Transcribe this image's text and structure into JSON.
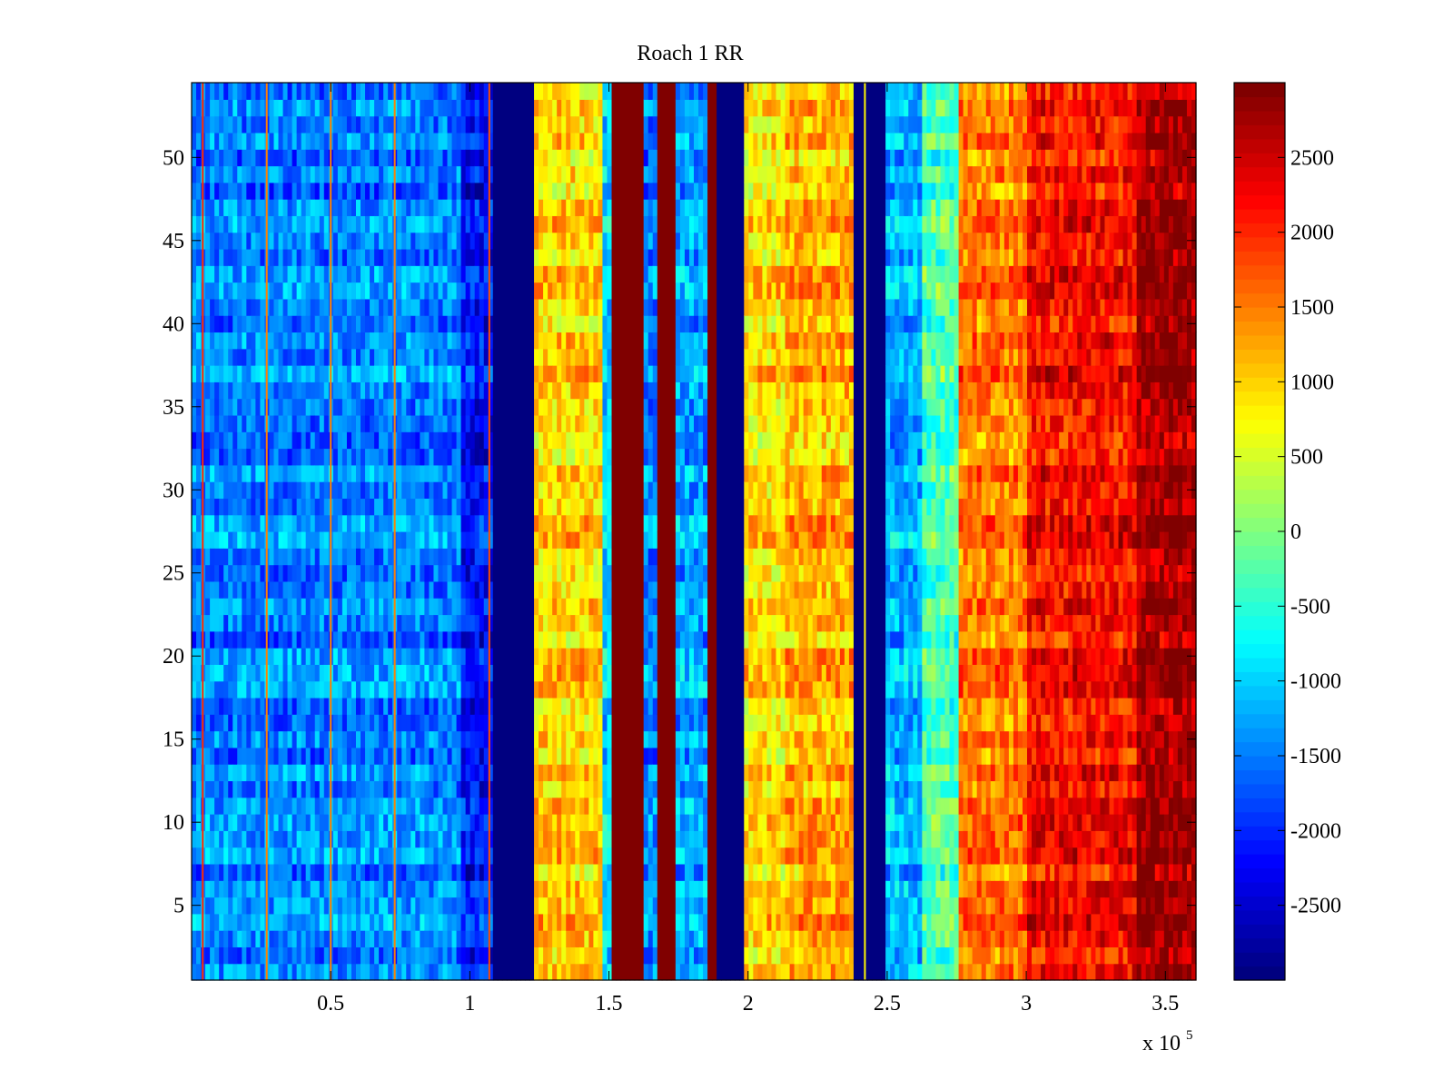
{
  "chart_data": {
    "type": "heatmap",
    "title": "Roach 1 RR",
    "colormap": "jet",
    "xlim": [
      0,
      361000
    ],
    "ylim": [
      0.5,
      54.5
    ],
    "x_ticks": [
      50000,
      100000,
      150000,
      200000,
      250000,
      300000,
      350000
    ],
    "x_tick_labels": [
      "0.5",
      "1",
      "1.5",
      "2",
      "2.5",
      "3",
      "3.5"
    ],
    "x_multiplier": {
      "base": "x 10",
      "exponent": "5"
    },
    "y_ticks": [
      5,
      10,
      15,
      20,
      25,
      30,
      35,
      40,
      45,
      50
    ],
    "y_tick_labels": [
      "5",
      "10",
      "15",
      "20",
      "25",
      "30",
      "35",
      "40",
      "45",
      "50"
    ],
    "rows": 54,
    "clim": [
      -3000,
      3000
    ],
    "colorbar_ticks": [
      2500,
      2000,
      1500,
      1000,
      500,
      0,
      -500,
      -1000,
      -1500,
      -2000,
      -2500
    ],
    "colorbar_tick_labels": [
      "2500",
      "2000",
      "1500",
      "1000",
      "500",
      "0",
      "-500",
      "-1000",
      "-1500",
      "-2000",
      "-2500"
    ],
    "column_bands": [
      {
        "x_start": 0,
        "x_end": 96000,
        "mean_value": -1500
      },
      {
        "x_start": 96000,
        "x_end": 108000,
        "mean_value": -2200
      },
      {
        "x_start": 108000,
        "x_end": 123000,
        "mean_value": -3000
      },
      {
        "x_start": 123000,
        "x_end": 148000,
        "mean_value": 1000
      },
      {
        "x_start": 148000,
        "x_end": 151000,
        "mean_value": -1000
      },
      {
        "x_start": 151000,
        "x_end": 162000,
        "mean_value": 3000
      },
      {
        "x_start": 162000,
        "x_end": 167000,
        "mean_value": -1500
      },
      {
        "x_start": 167000,
        "x_end": 174000,
        "mean_value": 3000
      },
      {
        "x_start": 174000,
        "x_end": 185000,
        "mean_value": -1300
      },
      {
        "x_start": 185000,
        "x_end": 188000,
        "mean_value": 3000
      },
      {
        "x_start": 188000,
        "x_end": 199000,
        "mean_value": -3000
      },
      {
        "x_start": 199000,
        "x_end": 213000,
        "mean_value": 900
      },
      {
        "x_start": 213000,
        "x_end": 238000,
        "mean_value": 1200
      },
      {
        "x_start": 238000,
        "x_end": 250000,
        "mean_value": -3000
      },
      {
        "x_start": 250000,
        "x_end": 262000,
        "mean_value": -1200
      },
      {
        "x_start": 262000,
        "x_end": 276000,
        "mean_value": -300
      },
      {
        "x_start": 276000,
        "x_end": 300000,
        "mean_value": 1500
      },
      {
        "x_start": 300000,
        "x_end": 339000,
        "mean_value": 2200
      },
      {
        "x_start": 339000,
        "x_end": 361000,
        "mean_value": 2800
      }
    ],
    "thin_stripes": [
      {
        "x": 4000,
        "value": 2000
      },
      {
        "x": 27000,
        "value": 1500
      },
      {
        "x": 50000,
        "value": 1500
      },
      {
        "x": 73000,
        "value": 1500
      },
      {
        "x": 107000,
        "value": 1800
      },
      {
        "x": 242000,
        "value": 800
      }
    ]
  }
}
